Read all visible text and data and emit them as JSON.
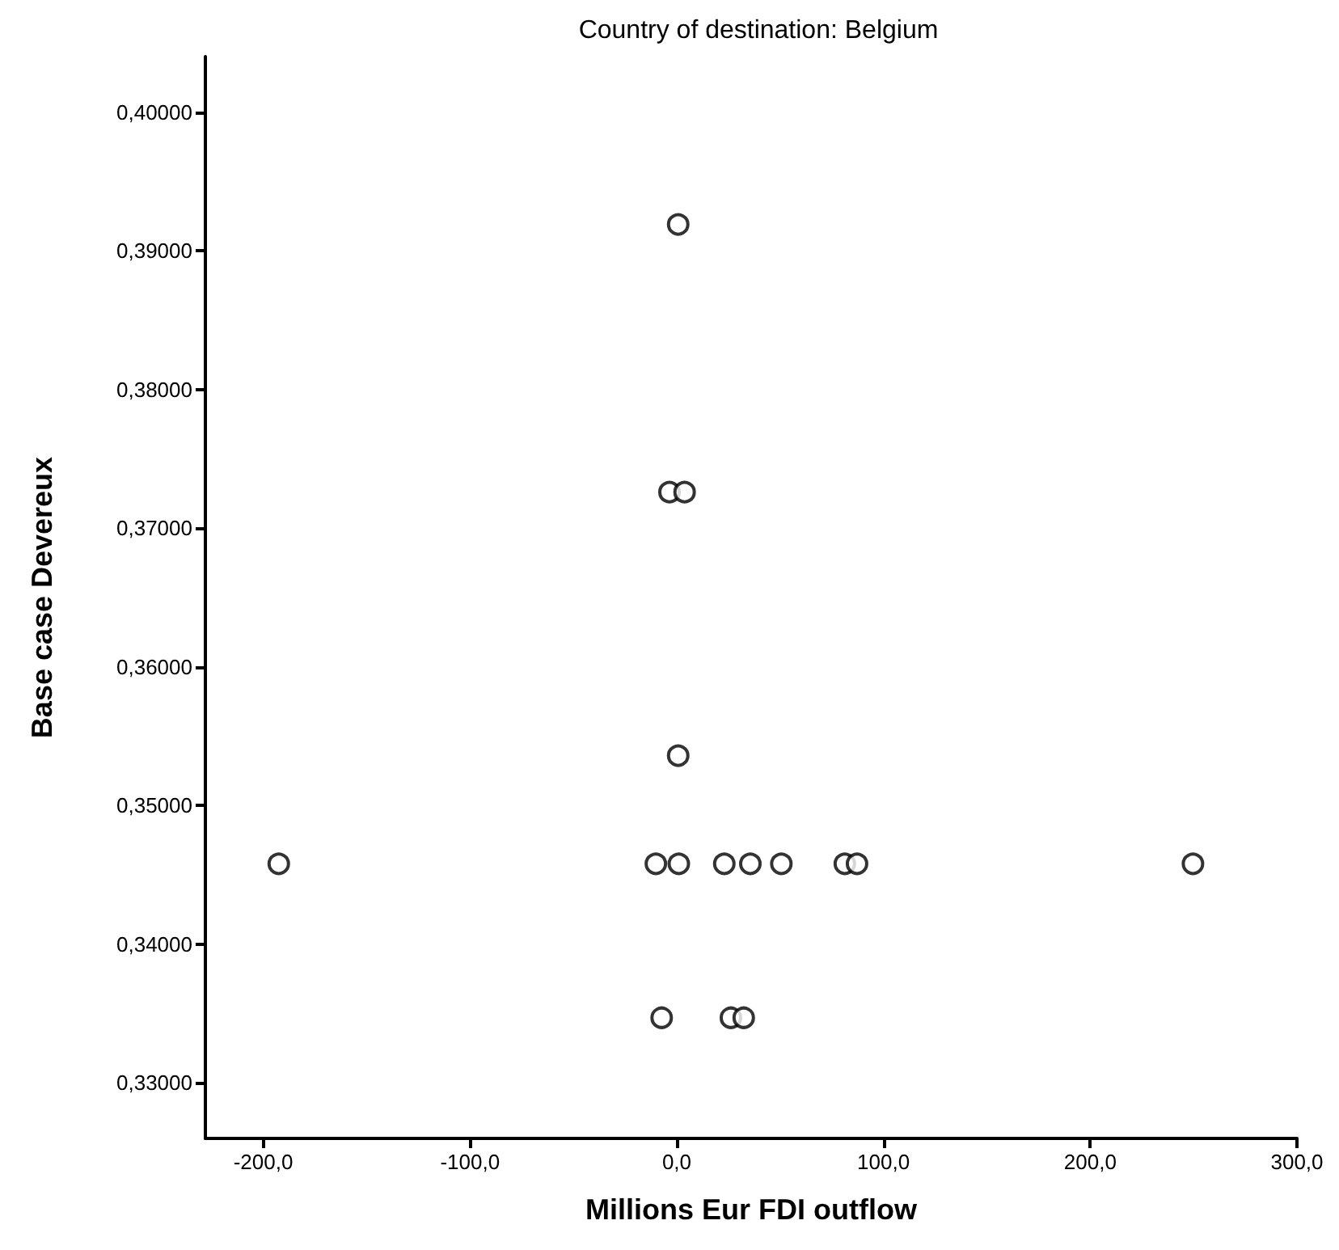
{
  "chart_data": {
    "type": "scatter",
    "title": "Country of destination: Belgium",
    "xlabel": "Millions Eur FDI outflow",
    "ylabel": "Base case Devereux",
    "series": [
      {
        "color": "#000000",
        "x": [
          0.7,
          -3.5,
          3.8,
          0.7,
          -192.5,
          -10.1,
          1.0,
          23,
          35.6,
          50.6,
          81.3,
          87.2,
          249.7,
          -7.3,
          26.2,
          32.4
        ],
        "values": [
          0.3919,
          0.3726,
          0.3726,
          0.3536,
          0.3458,
          0.3458,
          0.3458,
          0.3458,
          0.3458,
          0.3458,
          0.3458,
          0.3458,
          0.3458,
          0.3347,
          0.3347,
          0.3347
        ]
      }
    ],
    "xlim": [
      -228,
      300
    ],
    "ylim": [
      0.326,
      0.404
    ],
    "xticks": [
      {
        "value": -200,
        "label": "-200,0"
      },
      {
        "value": -100,
        "label": "-100,0"
      },
      {
        "value": 0,
        "label": "0,0"
      },
      {
        "value": 100,
        "label": "100,0"
      },
      {
        "value": 200,
        "label": "200,0"
      },
      {
        "value": 300,
        "label": "300,0"
      }
    ],
    "yticks": [
      {
        "value": 0.33,
        "label": "0,33000"
      },
      {
        "value": 0.34,
        "label": "0,34000"
      },
      {
        "value": 0.35,
        "label": "0,35000"
      },
      {
        "value": 0.36,
        "label": "0,36000"
      },
      {
        "value": 0.37,
        "label": "0,37000"
      },
      {
        "value": 0.38,
        "label": "0,38000"
      },
      {
        "value": 0.39,
        "label": "0,39000"
      },
      {
        "value": 0.4,
        "label": "0,40000"
      }
    ],
    "grid": false,
    "marker": "circle"
  }
}
